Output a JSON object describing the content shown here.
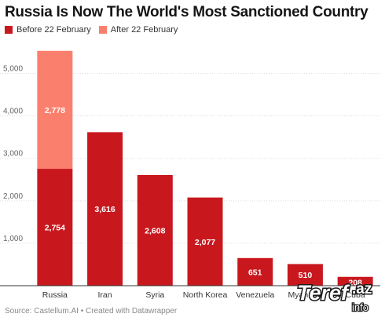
{
  "title": "Russia Is Now The World's Most Sanctioned Country",
  "source": "Source: Castellum.AI • Created with Datawrapper",
  "watermark": {
    "brand": "Teref",
    "tld": ".az",
    "sub": "info"
  },
  "colors": {
    "before": "#c8181e",
    "after": "#fb7f6d",
    "grid": "#dddddd",
    "axis": "#333333"
  },
  "chart_data": {
    "type": "bar",
    "stacked": true,
    "title": "Russia Is Now The World's Most Sanctioned Country",
    "xlabel": "",
    "ylabel": "",
    "ylim": [
      0,
      5600
    ],
    "yticks": [
      1000,
      2000,
      3000,
      4000,
      5000
    ],
    "ytick_labels": [
      "1,000",
      "2,000",
      "3,000",
      "4,000",
      "5,000"
    ],
    "grid": true,
    "legend": "top-left",
    "categories": [
      "Russia",
      "Iran",
      "Syria",
      "North Korea",
      "Venezuela",
      "Myanmar",
      "Cuba"
    ],
    "series": [
      {
        "name": "Before 22 February",
        "values": [
          2754,
          3616,
          2608,
          2077,
          651,
          510,
          208
        ],
        "labels": [
          "2,754",
          "3,616",
          "2,608",
          "2,077",
          "651",
          "510",
          "208"
        ]
      },
      {
        "name": "After 22 February",
        "values": [
          2778,
          0,
          0,
          0,
          0,
          0,
          0
        ],
        "labels": [
          "2,778",
          "",
          "",
          "",
          "",
          "",
          ""
        ]
      }
    ]
  }
}
